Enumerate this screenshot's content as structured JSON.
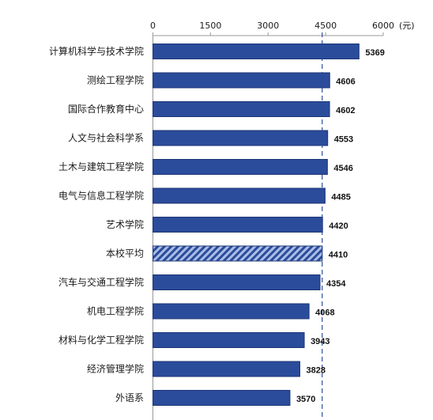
{
  "chart_data": {
    "type": "bar",
    "orientation": "horizontal",
    "categories": [
      "计算机科学与技术学院",
      "测绘工程学院",
      "国际合作教育中心",
      "人文与社会科学系",
      "土木与建筑工程学院",
      "电气与信息工程学院",
      "艺术学院",
      "本校平均",
      "汽车与交通工程学院",
      "机电工程学院",
      "材料与化学工程学院",
      "经济管理学院",
      "外语系"
    ],
    "values": [
      5369,
      4606,
      4602,
      4553,
      4546,
      4485,
      4420,
      4410,
      4354,
      4068,
      3943,
      3828,
      3570
    ],
    "value_labels": [
      "5369",
      "4606",
      "4602",
      "4553",
      "4546",
      "4485",
      "4420",
      "4410",
      "4354",
      "4068",
      "3943",
      "3828",
      "3570"
    ],
    "highlight_category": "本校平均",
    "xlim": [
      0,
      6000
    ],
    "xticks": [
      0,
      1500,
      3000,
      4500,
      6000
    ],
    "xtick_labels": [
      "0",
      "1500",
      "3000",
      "4500",
      "6000"
    ],
    "unit_label": "(元)",
    "axis_position": "top",
    "reference_line": 4410,
    "grid": false,
    "title": "",
    "xlabel": "",
    "ylabel": "",
    "colors": {
      "bar": "#2b4c9b",
      "bar_edge": "#1c3576",
      "highlight_hatch_light": "#a9bde6",
      "reference_line": "#2b4c9b",
      "axis": "#999999"
    }
  }
}
